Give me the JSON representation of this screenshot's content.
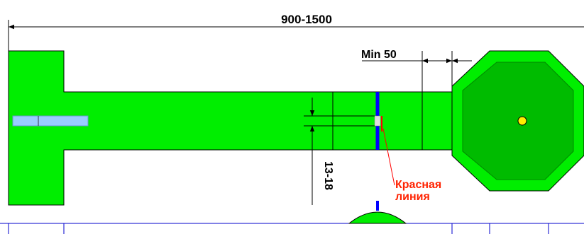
{
  "dimensions": {
    "total_length": "900-1500",
    "min_gap": "Min 50",
    "slot_width": "13-18"
  },
  "annotation": {
    "line1": "Красная",
    "line2": "линия"
  },
  "colors": {
    "field_green": "#00ee00",
    "octagon_inner": "#00bb00",
    "octagon_border": "#008800",
    "blue_line": "#0000ff",
    "red_line": "#ff0000",
    "ball_yellow": "#ffee00",
    "slot_lightblue": "#99ccff",
    "annotation_red": "#ff2200",
    "grid_blue": "#0000cc"
  }
}
